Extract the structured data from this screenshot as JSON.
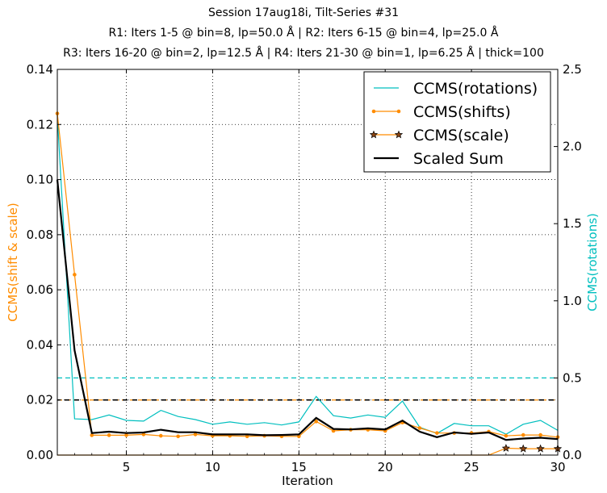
{
  "chart_data": {
    "type": "line",
    "title_lines": [
      "Session 17aug18i, Tilt-Series #31",
      "R1: Iters 1-5 @ bin=8, lp=50.0 Å | R2: Iters 6-15 @ bin=4, lp=25.0 Å",
      "R3: Iters 16-20 @ bin=2, lp=12.5 Å | R4: Iters 21-30 @ bin=1, lp=6.25 Å | thick=100"
    ],
    "xlabel": "Iteration",
    "ylabel_left": "CCMS(shift & scale)",
    "ylabel_right": "CCMS(rotations)",
    "xlim": [
      1,
      30
    ],
    "ylim_left": [
      0,
      0.14
    ],
    "ylim_right": [
      0,
      2.5
    ],
    "x_ticks": [
      5,
      10,
      15,
      20,
      25,
      30
    ],
    "y_ticks_left": [
      "0.00",
      "0.02",
      "0.04",
      "0.06",
      "0.08",
      "0.10",
      "0.12",
      "0.14"
    ],
    "y_ticks_right": [
      "0.0",
      "0.5",
      "1.0",
      "1.5",
      "2.0",
      "2.5"
    ],
    "grid": true,
    "legend_position": "top-right",
    "x": [
      1,
      2,
      3,
      4,
      5,
      6,
      7,
      8,
      9,
      10,
      11,
      12,
      13,
      14,
      15,
      16,
      17,
      18,
      19,
      20,
      21,
      22,
      23,
      24,
      25,
      26,
      27,
      28,
      29,
      30
    ],
    "series": [
      {
        "name": "CCMS(rotations)",
        "axis": "right",
        "color": "#00bfbf",
        "marker": "none",
        "values": [
          2.2,
          0.235,
          0.23,
          0.26,
          0.225,
          0.22,
          0.29,
          0.25,
          0.23,
          0.2,
          0.215,
          0.2,
          0.21,
          0.195,
          0.215,
          0.38,
          0.255,
          0.24,
          0.26,
          0.245,
          0.35,
          0.18,
          0.14,
          0.205,
          0.19,
          0.19,
          0.135,
          0.2,
          0.225,
          0.16
        ]
      },
      {
        "name": "CCMS(shifts)",
        "axis": "left",
        "color": "#ff8c00",
        "marker": "dot",
        "values": [
          0.124,
          0.0655,
          0.0072,
          0.0072,
          0.0072,
          0.0075,
          0.007,
          0.0068,
          0.0075,
          0.007,
          0.007,
          0.0068,
          0.007,
          0.0068,
          0.0068,
          0.0122,
          0.0088,
          0.0092,
          0.0092,
          0.0088,
          0.0118,
          0.0098,
          0.008,
          0.008,
          0.008,
          0.0085,
          0.007,
          0.0073,
          0.0073,
          0.0065
        ]
      },
      {
        "name": "CCMS(scale)",
        "axis": "left",
        "color": "#ff8c00",
        "marker": "star",
        "values": [
          0,
          0,
          0,
          0,
          0,
          0,
          0,
          0,
          0,
          0,
          0,
          0,
          0,
          0,
          0,
          0,
          0,
          0,
          0,
          0,
          0,
          0,
          0,
          0,
          0,
          0,
          0.0025,
          0.0023,
          0.0023,
          0.0023
        ]
      },
      {
        "name": "Scaled Sum",
        "axis": "left",
        "color": "#000000",
        "marker": "none",
        "values": [
          0.1,
          0.038,
          0.008,
          0.0085,
          0.008,
          0.0082,
          0.0092,
          0.0083,
          0.0083,
          0.0075,
          0.0075,
          0.0075,
          0.0072,
          0.0073,
          0.0075,
          0.0135,
          0.0095,
          0.0093,
          0.0097,
          0.0093,
          0.0125,
          0.0085,
          0.0065,
          0.0082,
          0.0077,
          0.0082,
          0.0055,
          0.006,
          0.0063,
          0.0058
        ]
      }
    ],
    "reference_lines": [
      {
        "axis": "right",
        "value": 0.5,
        "color": "#00bfbf",
        "style": "dashed"
      },
      {
        "axis": "left",
        "value": 0.02,
        "color": "#ff8c00",
        "style": "dashed"
      },
      {
        "axis": "left",
        "value": 0.02,
        "color": "#000000",
        "style": "dashed"
      }
    ],
    "colors": {
      "left_label": "#ff8c00",
      "right_label": "#00bfbf"
    }
  }
}
